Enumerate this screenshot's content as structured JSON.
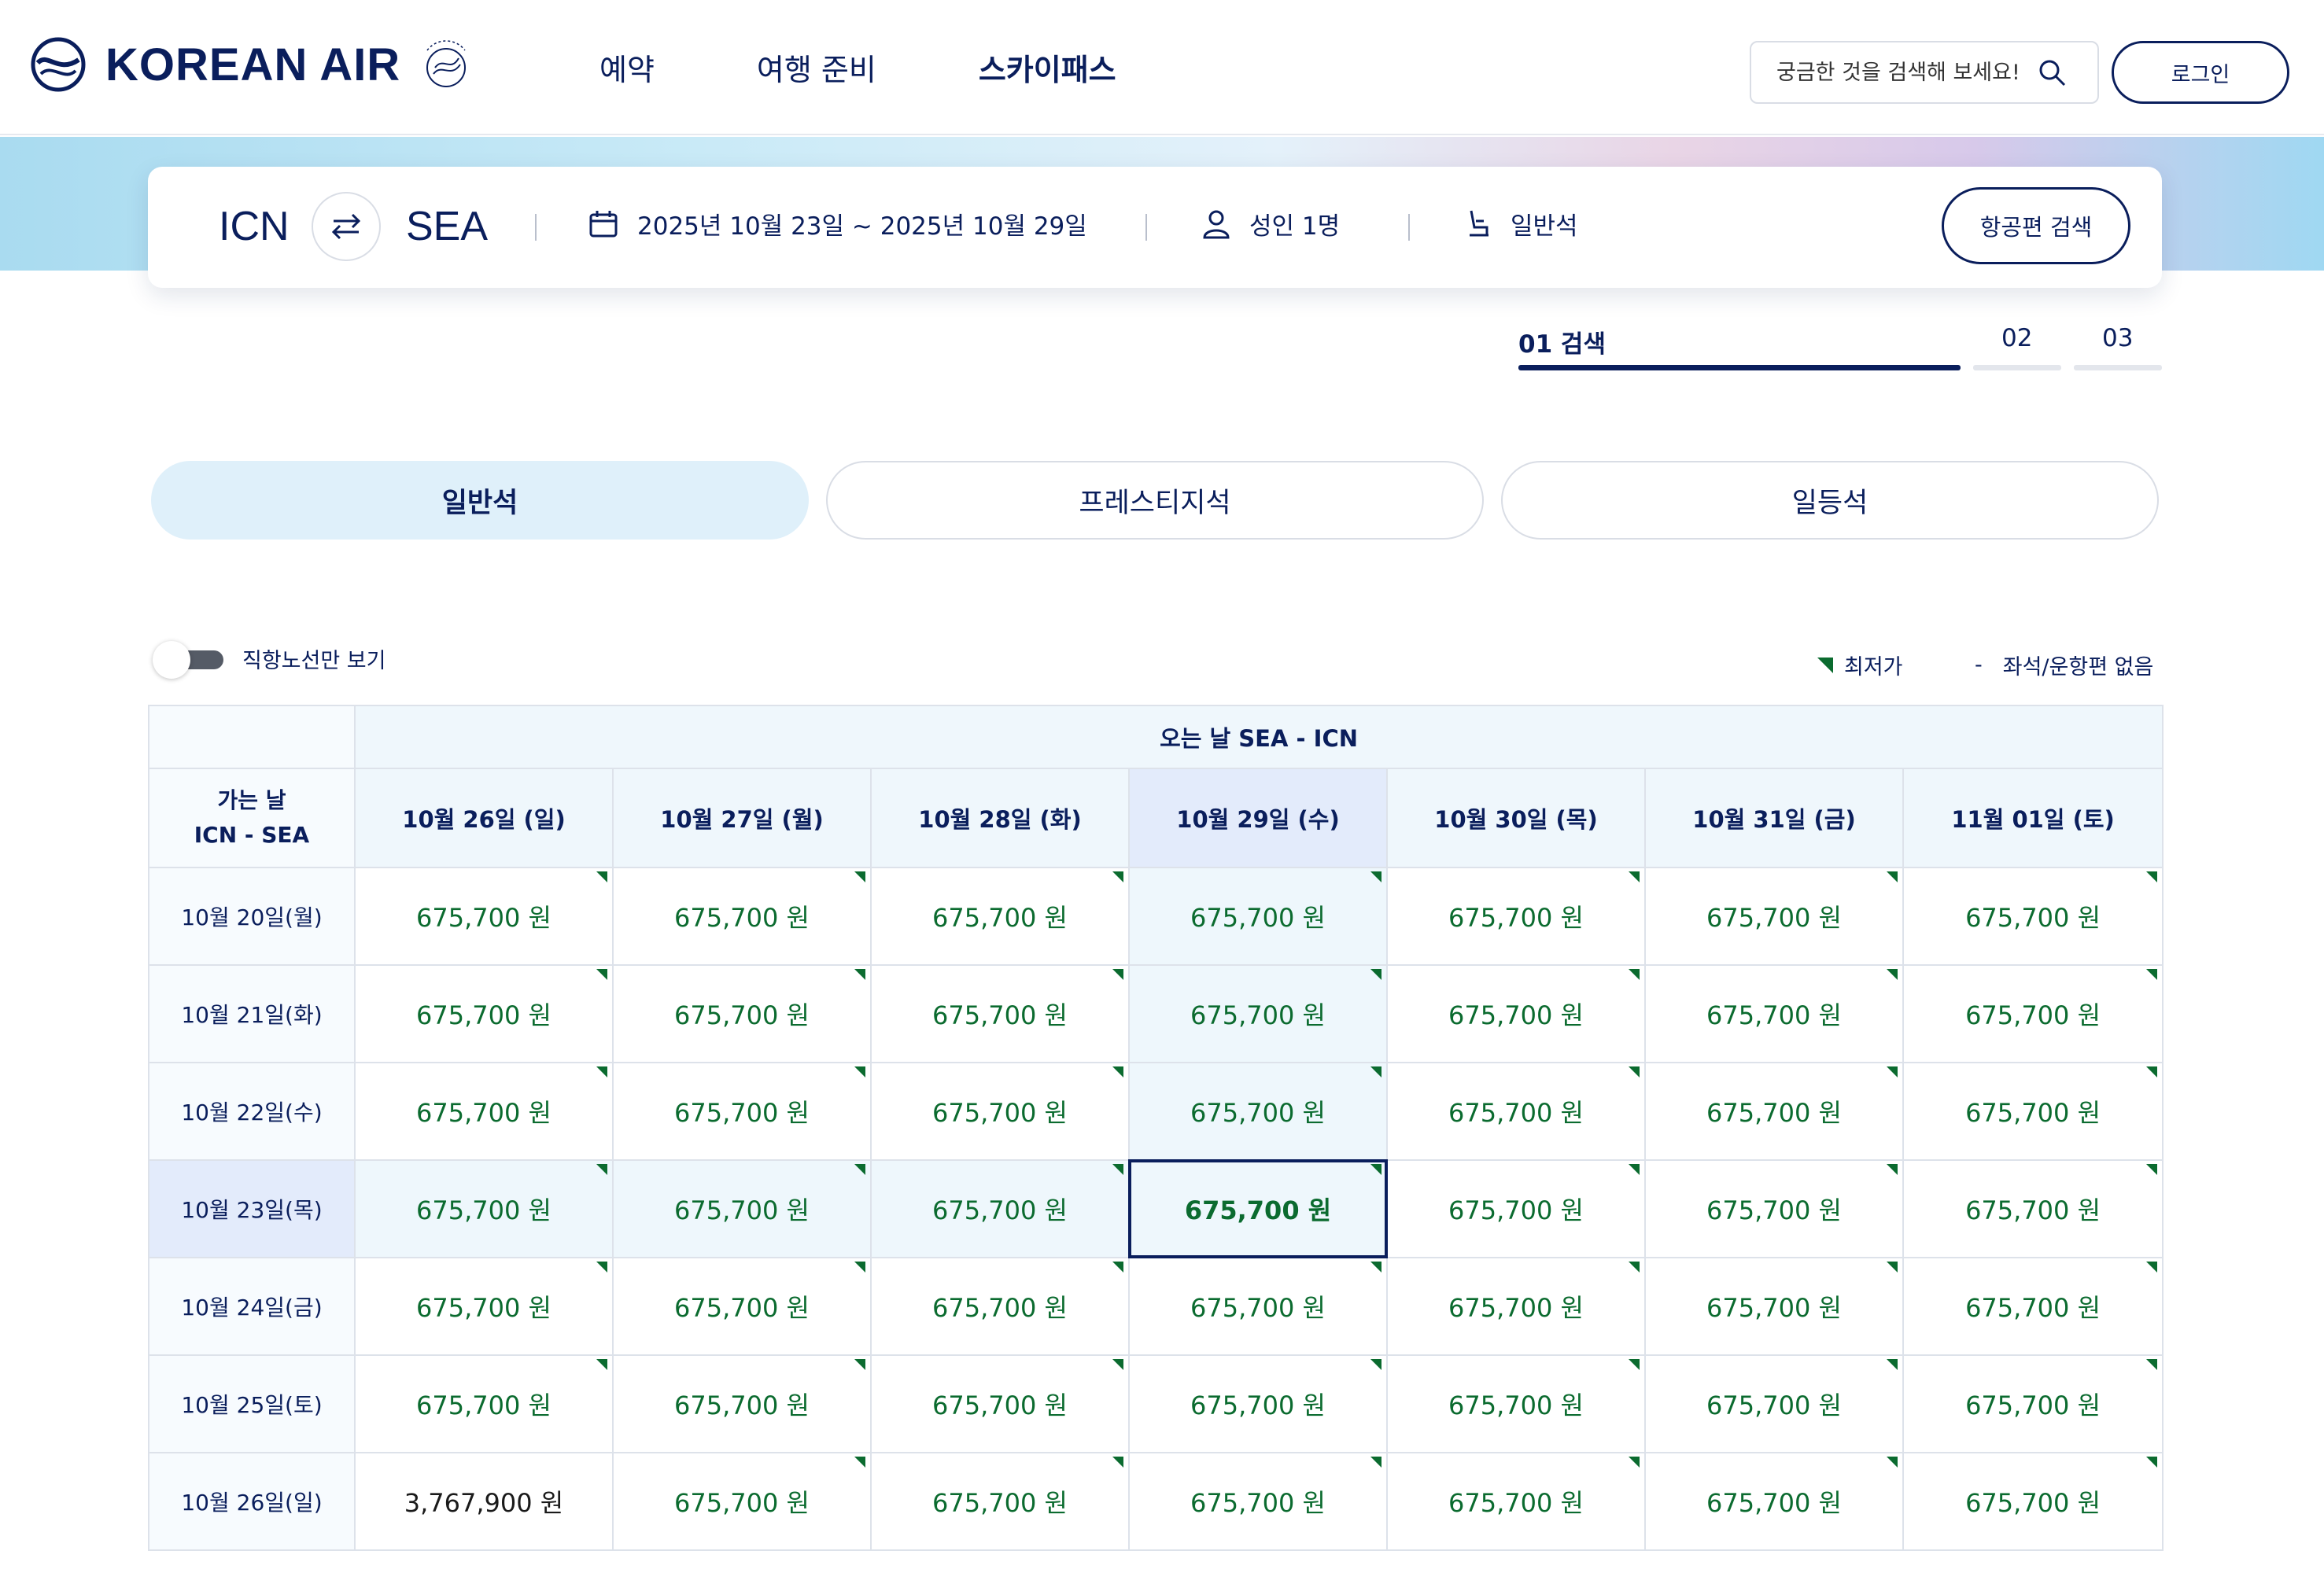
{
  "header": {
    "brand": "KOREAN AIR",
    "nav": [
      "예약",
      "여행 준비",
      "스카이패스"
    ],
    "search_placeholder": "궁금한 것을 검색해 보세요!",
    "login": "로그인"
  },
  "searchbar": {
    "from": "ICN",
    "to": "SEA",
    "dates": "2025년 10월 23일 ~ 2025년 10월 29일",
    "passengers": "성인 1명",
    "cabin": "일반석",
    "search_button": "항공편 검색"
  },
  "steps": [
    {
      "label": "01  검색",
      "active": true
    },
    {
      "label": "02",
      "active": false
    },
    {
      "label": "03",
      "active": false
    }
  ],
  "cabin_tabs": [
    {
      "label": "일반석",
      "active": true
    },
    {
      "label": "프레스티지석",
      "active": false
    },
    {
      "label": "일등석",
      "active": false
    }
  ],
  "filters": {
    "direct_only_label": "직항노선만 보기",
    "direct_only_on": false
  },
  "legend": {
    "lowest": "최저가",
    "none_marker": "-",
    "none": "좌석/운항편 없음"
  },
  "fare_table": {
    "return_header": "오는 날 SEA - ICN",
    "outbound_header_line1": "가는 날",
    "outbound_header_line2": "ICN - SEA",
    "return_dates": [
      "10월 26일 (일)",
      "10월 27일 (월)",
      "10월 28일 (화)",
      "10월 29일 (수)",
      "10월 30일 (목)",
      "10월 31일 (금)",
      "11월 01일 (토)"
    ],
    "selected_return_index": 3,
    "selected_outbound_index": 3,
    "rows": [
      {
        "date": "10월 20일(월)",
        "fares": [
          "675,700 원",
          "675,700 원",
          "675,700 원",
          "675,700 원",
          "675,700 원",
          "675,700 원",
          "675,700 원"
        ],
        "lowest": [
          true,
          true,
          true,
          true,
          true,
          true,
          true
        ]
      },
      {
        "date": "10월 21일(화)",
        "fares": [
          "675,700 원",
          "675,700 원",
          "675,700 원",
          "675,700 원",
          "675,700 원",
          "675,700 원",
          "675,700 원"
        ],
        "lowest": [
          true,
          true,
          true,
          true,
          true,
          true,
          true
        ]
      },
      {
        "date": "10월 22일(수)",
        "fares": [
          "675,700 원",
          "675,700 원",
          "675,700 원",
          "675,700 원",
          "675,700 원",
          "675,700 원",
          "675,700 원"
        ],
        "lowest": [
          true,
          true,
          true,
          true,
          true,
          true,
          true
        ]
      },
      {
        "date": "10월 23일(목)",
        "fares": [
          "675,700 원",
          "675,700 원",
          "675,700 원",
          "675,700 원",
          "675,700 원",
          "675,700 원",
          "675,700 원"
        ],
        "lowest": [
          true,
          true,
          true,
          true,
          true,
          true,
          true
        ]
      },
      {
        "date": "10월 24일(금)",
        "fares": [
          "675,700 원",
          "675,700 원",
          "675,700 원",
          "675,700 원",
          "675,700 원",
          "675,700 원",
          "675,700 원"
        ],
        "lowest": [
          true,
          true,
          true,
          true,
          true,
          true,
          true
        ]
      },
      {
        "date": "10월 25일(토)",
        "fares": [
          "675,700 원",
          "675,700 원",
          "675,700 원",
          "675,700 원",
          "675,700 원",
          "675,700 원",
          "675,700 원"
        ],
        "lowest": [
          true,
          true,
          true,
          true,
          true,
          true,
          true
        ]
      },
      {
        "date": "10월 26일(일)",
        "fares": [
          "3,767,900 원",
          "675,700 원",
          "675,700 원",
          "675,700 원",
          "675,700 원",
          "675,700 원",
          "675,700 원"
        ],
        "lowest": [
          false,
          true,
          true,
          true,
          true,
          true,
          true
        ]
      }
    ]
  },
  "colors": {
    "navy": "#0a1e5c",
    "fare_green": "#0b6b2f",
    "active_tab": "#dff0fa",
    "highlight": "#eef7fc"
  }
}
